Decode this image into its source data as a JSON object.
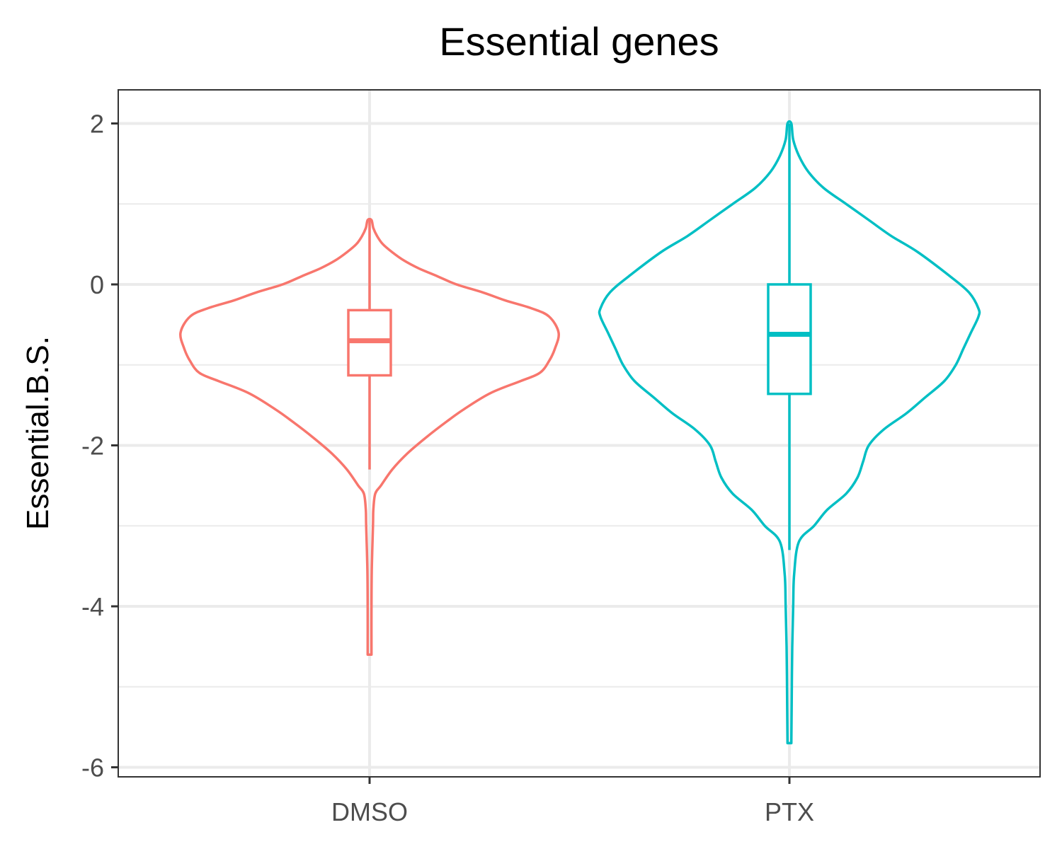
{
  "chart_data": {
    "type": "violin",
    "title": "Essential genes",
    "xlabel": "",
    "ylabel": "Essential.B.S.",
    "ylim": [
      -6.1,
      2.4
    ],
    "yticks": [
      "2",
      "0",
      "-2",
      "-4",
      "-6"
    ],
    "ytick_values": [
      2,
      0,
      -2,
      -4,
      -6
    ],
    "grid": true,
    "legend": "none",
    "categories": [
      "DMSO",
      "PTX"
    ],
    "series": [
      {
        "category": "DMSO",
        "color": "#F8766D",
        "min": -4.6,
        "max": 0.8,
        "box": {
          "whisker_low": -2.3,
          "q1": -1.13,
          "median": -0.7,
          "q3": -0.32,
          "whisker_high": 0.8
        },
        "density": [
          [
            -4.6,
            0.01
          ],
          [
            -4.0,
            0.01
          ],
          [
            -3.5,
            0.012
          ],
          [
            -3.0,
            0.018
          ],
          [
            -2.8,
            0.02
          ],
          [
            -2.6,
            0.03
          ],
          [
            -2.5,
            0.06
          ],
          [
            -2.3,
            0.12
          ],
          [
            -2.1,
            0.2
          ],
          [
            -1.9,
            0.3
          ],
          [
            -1.7,
            0.41
          ],
          [
            -1.55,
            0.5
          ],
          [
            -1.35,
            0.64
          ],
          [
            -1.2,
            0.8
          ],
          [
            -1.1,
            0.9
          ],
          [
            -0.95,
            0.95
          ],
          [
            -0.8,
            0.98
          ],
          [
            -0.6,
            1.0
          ],
          [
            -0.4,
            0.95
          ],
          [
            -0.3,
            0.86
          ],
          [
            -0.2,
            0.72
          ],
          [
            -0.1,
            0.6
          ],
          [
            0.0,
            0.46
          ],
          [
            0.1,
            0.36
          ],
          [
            0.2,
            0.26
          ],
          [
            0.3,
            0.18
          ],
          [
            0.4,
            0.12
          ],
          [
            0.5,
            0.07
          ],
          [
            0.6,
            0.04
          ],
          [
            0.7,
            0.02
          ],
          [
            0.8,
            0.01
          ]
        ]
      },
      {
        "category": "PTX",
        "color": "#00BFC4",
        "min": -5.7,
        "max": 2.0,
        "box": {
          "whisker_low": -3.3,
          "q1": -1.36,
          "median": -0.62,
          "q3": 0.0,
          "whisker_high": 2.0
        },
        "density": [
          [
            -5.7,
            0.01
          ],
          [
            -5.2,
            0.012
          ],
          [
            -4.5,
            0.015
          ],
          [
            -4.0,
            0.02
          ],
          [
            -3.6,
            0.025
          ],
          [
            -3.2,
            0.05
          ],
          [
            -3.0,
            0.13
          ],
          [
            -2.8,
            0.2
          ],
          [
            -2.6,
            0.3
          ],
          [
            -2.4,
            0.36
          ],
          [
            -2.2,
            0.39
          ],
          [
            -2.0,
            0.42
          ],
          [
            -1.8,
            0.5
          ],
          [
            -1.6,
            0.62
          ],
          [
            -1.4,
            0.72
          ],
          [
            -1.2,
            0.82
          ],
          [
            -1.0,
            0.88
          ],
          [
            -0.8,
            0.92
          ],
          [
            -0.6,
            0.96
          ],
          [
            -0.4,
            1.0
          ],
          [
            -0.3,
            1.0
          ],
          [
            -0.1,
            0.95
          ],
          [
            0.1,
            0.85
          ],
          [
            0.4,
            0.68
          ],
          [
            0.6,
            0.54
          ],
          [
            0.8,
            0.42
          ],
          [
            1.0,
            0.3
          ],
          [
            1.2,
            0.18
          ],
          [
            1.4,
            0.1
          ],
          [
            1.6,
            0.05
          ],
          [
            1.8,
            0.02
          ],
          [
            2.0,
            0.01
          ]
        ]
      }
    ]
  }
}
